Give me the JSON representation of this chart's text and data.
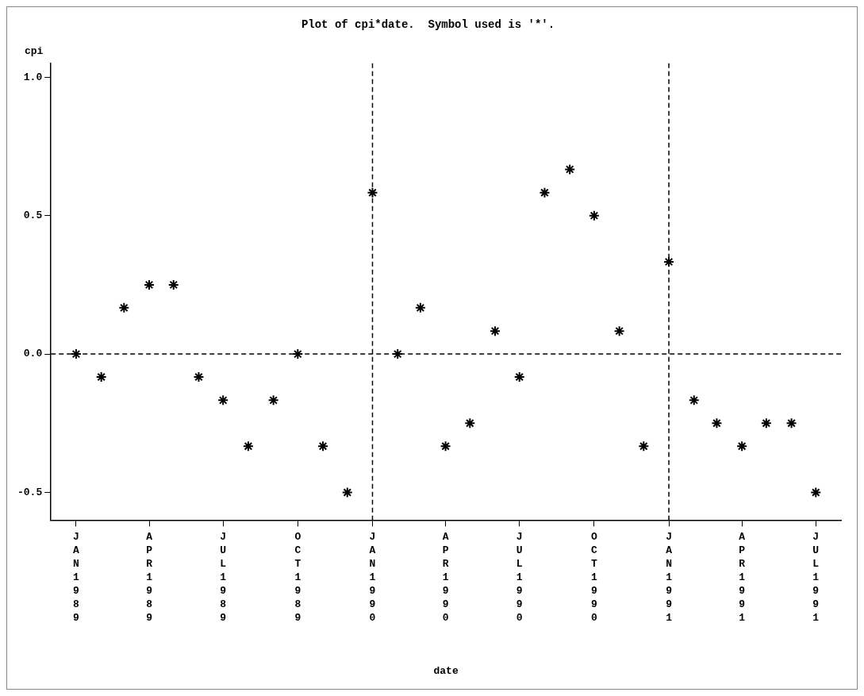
{
  "chart_data": {
    "type": "scatter",
    "title": "Plot of cpi*date.  Symbol used is '*'.",
    "xlabel": "date",
    "ylabel": "cpi",
    "x": [
      "1989-01",
      "1989-02",
      "1989-03",
      "1989-04",
      "1989-05",
      "1989-06",
      "1989-07",
      "1989-08",
      "1989-09",
      "1989-10",
      "1989-11",
      "1989-12",
      "1990-01",
      "1990-02",
      "1990-03",
      "1990-04",
      "1990-05",
      "1990-06",
      "1990-07",
      "1990-08",
      "1990-09",
      "1990-10",
      "1990-11",
      "1990-12",
      "1991-01",
      "1991-02",
      "1991-03",
      "1991-04",
      "1991-05",
      "1991-06",
      "1991-07"
    ],
    "values": [
      0,
      -0.083,
      0.167,
      0.25,
      0.25,
      -0.083,
      -0.167,
      -0.333,
      -0.167,
      0,
      -0.333,
      -0.5,
      0.583,
      0,
      0.167,
      -0.333,
      -0.25,
      0.083,
      -0.083,
      0.583,
      0.667,
      0.5,
      0.083,
      -0.333,
      0.333,
      -0.167,
      -0.25,
      -0.333,
      -0.25,
      -0.25,
      -0.5
    ],
    "color": "#000000",
    "marker": "cross",
    "grid": false,
    "legend": false,
    "xlim": [
      "1988-12",
      "1991-08"
    ],
    "xticks": [
      {
        "value": "1989-01",
        "label": "JAN1989"
      },
      {
        "value": "1989-04",
        "label": "APR1989"
      },
      {
        "value": "1989-07",
        "label": "JUL1989"
      },
      {
        "value": "1989-10",
        "label": "OCT1989"
      },
      {
        "value": "1990-01",
        "label": "JAN1990"
      },
      {
        "value": "1990-04",
        "label": "APR1990"
      },
      {
        "value": "1990-07",
        "label": "JUL1990"
      },
      {
        "value": "1990-10",
        "label": "OCT1990"
      },
      {
        "value": "1991-01",
        "label": "JAN1991"
      },
      {
        "value": "1991-04",
        "label": "APR1991"
      },
      {
        "value": "1991-07",
        "label": "JUL1991"
      }
    ],
    "ylim": [
      -0.6,
      1.05
    ],
    "yticks": [
      -0.5,
      {
        "value": 0,
        "label": "0.0"
      },
      0.5,
      {
        "value": 1,
        "label": "1.0"
      }
    ],
    "ref_lines": [
      {
        "axis": "y",
        "value": 0,
        "line_style": "dashed"
      },
      {
        "axis": "x",
        "value": "1990-01",
        "line_style": "dashed"
      },
      {
        "axis": "x",
        "value": "1991-01",
        "line_style": "dashed"
      }
    ]
  }
}
